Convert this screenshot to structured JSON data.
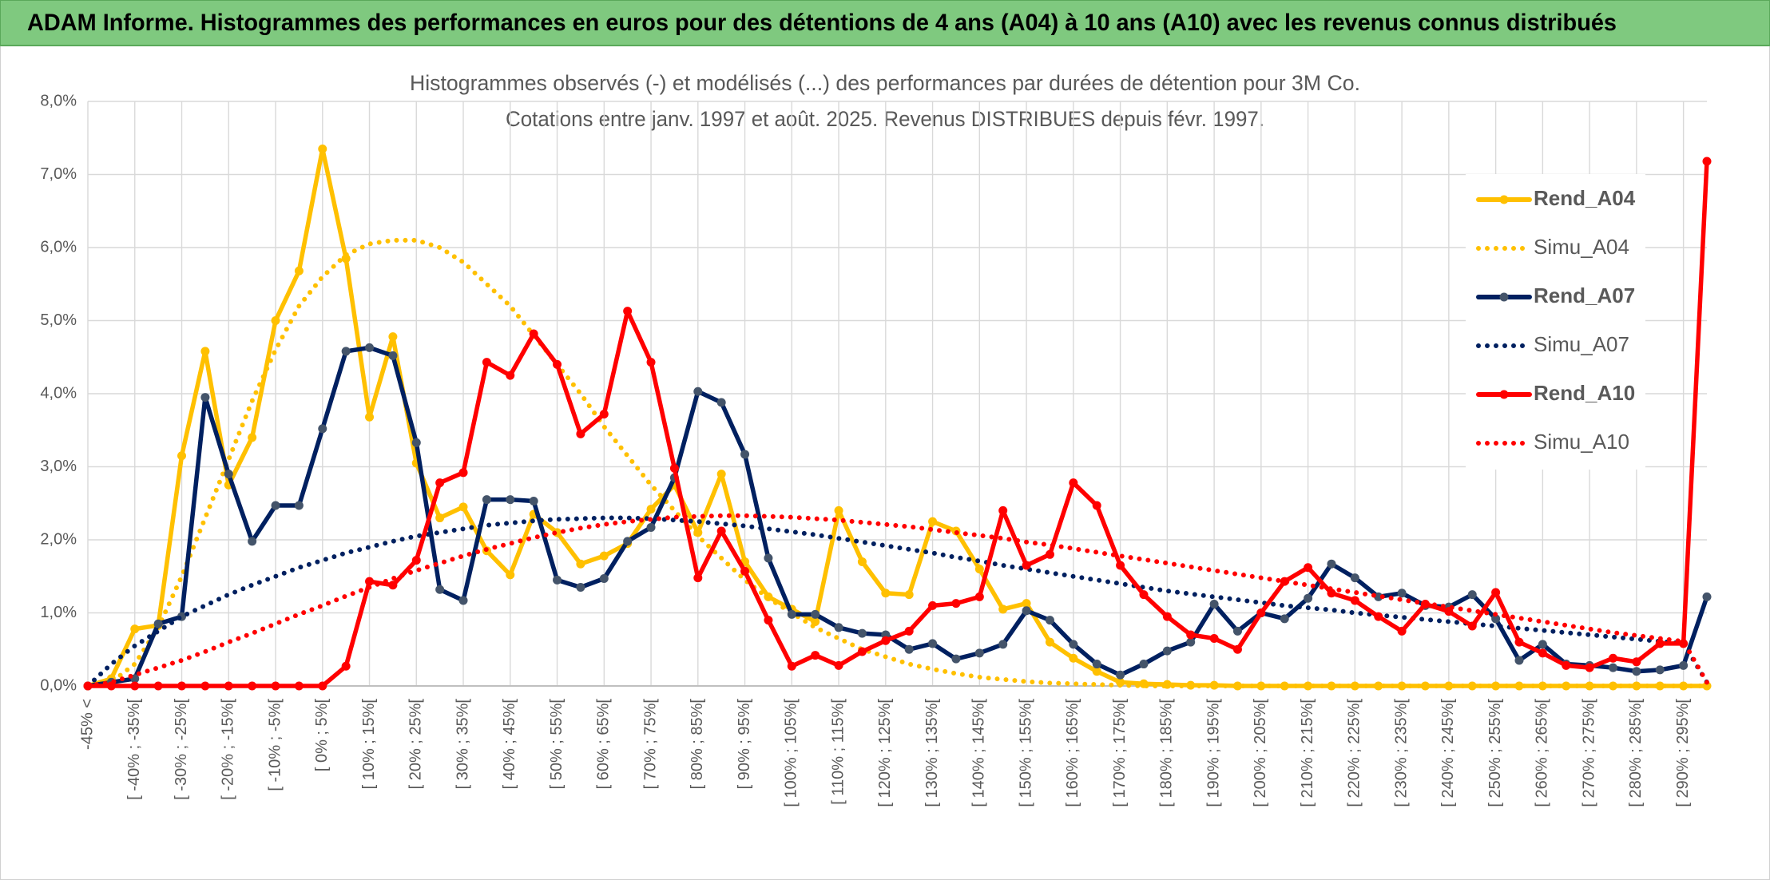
{
  "header": {
    "title": "ADAM Informe. Histogrammes des performances en euros pour des détentions de 4 ans (A04) à 10 ans (A10) avec les revenus connus distribués"
  },
  "chart_data": {
    "type": "line",
    "title": "Histogrammes observés (-) et modélisés (...) des performances par durées de détention pour 3M Co.",
    "subtitle": "Cotations entre janv. 1997 et août. 2025. Revenus DISTRIBUES depuis févr. 1997.",
    "categories": [
      "-45% <",
      null,
      "[ -40% ; -35%[",
      null,
      "[ -30% ; -25%[",
      null,
      "[ -20% ; -15%[",
      null,
      "[ -10% ; -5%[",
      null,
      "[ 0% ; 5%[",
      null,
      "[ 10% ; 15%[",
      null,
      "[ 20% ; 25%[",
      null,
      "[ 30% ; 35%[",
      null,
      "[ 40% ; 45%[",
      null,
      "[ 50% ; 55%[",
      null,
      "[ 60% ; 65%[",
      null,
      "[ 70% ; 75%[",
      null,
      "[ 80% ; 85%[",
      null,
      "[ 90% ; 95%[",
      null,
      "[ 100% ; 105%[",
      null,
      "[ 110% ; 115%[",
      null,
      "[ 120% ; 125%[",
      null,
      "[ 130% ; 135%[",
      null,
      "[ 140% ; 145%[",
      null,
      "[ 150% ; 155%[",
      null,
      "[ 160% ; 165%[",
      null,
      "[ 170% ; 175%[",
      null,
      "[ 180% ; 185%[",
      null,
      "[ 190% ; 195%[",
      null,
      "[ 200% ; 205%[",
      null,
      "[ 210% ; 215%[",
      null,
      "[ 220% ; 225%[",
      null,
      "[ 230% ; 235%[",
      null,
      "[ 240% ; 245%[",
      null,
      "[ 250% ; 255%[",
      null,
      "[ 260% ; 265%[",
      null,
      "[ 270% ; 275%[",
      null,
      "[ 280% ; 285%[",
      null,
      "[ 290% ; 295%[",
      null
    ],
    "series": [
      {
        "name": "Rend_A04",
        "color": "#ffc000",
        "style": "solid",
        "markers": true,
        "values": [
          0,
          0.1,
          0.78,
          0.83,
          3.15,
          4.58,
          2.75,
          3.4,
          5.0,
          5.68,
          7.35,
          5.85,
          3.68,
          4.78,
          3.05,
          2.3,
          2.45,
          1.85,
          1.52,
          2.35,
          2.1,
          1.67,
          1.78,
          1.95,
          2.42,
          2.75,
          2.1,
          2.9,
          1.7,
          1.22,
          1.05,
          0.88,
          2.4,
          1.7,
          1.27,
          1.25,
          2.25,
          2.12,
          1.6,
          1.05,
          1.13,
          0.6,
          0.38,
          0.2,
          0.05,
          0.03,
          0.02,
          0.01,
          0.01,
          0,
          0,
          0,
          0,
          0,
          0,
          0,
          0,
          0,
          0,
          0,
          0,
          0,
          0,
          0,
          0,
          0,
          0,
          0,
          0,
          0
        ]
      },
      {
        "name": "Simu_A04",
        "color": "#ffc000",
        "style": "dotted",
        "markers": false,
        "values": [
          0,
          0.05,
          0.3,
          0.8,
          1.5,
          2.3,
          3.1,
          3.9,
          4.6,
          5.2,
          5.6,
          5.9,
          6.05,
          6.1,
          6.1,
          6.0,
          5.8,
          5.5,
          5.2,
          4.8,
          4.4,
          4.0,
          3.55,
          3.15,
          2.75,
          2.4,
          2.05,
          1.75,
          1.45,
          1.2,
          1.0,
          0.8,
          0.65,
          0.5,
          0.4,
          0.3,
          0.23,
          0.17,
          0.12,
          0.09,
          0.06,
          0.04,
          0.03,
          0.02,
          0.01,
          0,
          0,
          0,
          0,
          0,
          0,
          0,
          0,
          0,
          0,
          0,
          0,
          0,
          0,
          0,
          0,
          0,
          0,
          0,
          0,
          0,
          0,
          0,
          0,
          0
        ]
      },
      {
        "name": "Rend_A07",
        "color": "#002060",
        "style": "solid",
        "markers": true,
        "values": [
          0,
          0.05,
          0.1,
          0.85,
          0.95,
          3.95,
          2.9,
          1.98,
          2.47,
          2.47,
          3.52,
          4.58,
          4.63,
          4.52,
          3.33,
          1.32,
          1.17,
          2.55,
          2.55,
          2.53,
          1.45,
          1.35,
          1.47,
          1.98,
          2.17,
          2.85,
          4.03,
          3.88,
          3.17,
          1.75,
          0.98,
          0.98,
          0.8,
          0.72,
          0.7,
          0.5,
          0.58,
          0.37,
          0.45,
          0.57,
          1.03,
          0.9,
          0.57,
          0.3,
          0.15,
          0.3,
          0.48,
          0.6,
          1.12,
          0.75,
          1.0,
          0.92,
          1.2,
          1.67,
          1.48,
          1.22,
          1.27,
          1.1,
          1.08,
          1.25,
          0.92,
          0.35,
          0.57,
          0.3,
          0.28,
          0.25,
          0.2,
          0.22,
          0.28,
          1.22
        ]
      },
      {
        "name": "Simu_A07",
        "color": "#002060",
        "style": "dotted",
        "markers": false,
        "values": [
          0,
          0.3,
          0.55,
          0.75,
          0.95,
          1.1,
          1.25,
          1.38,
          1.5,
          1.62,
          1.72,
          1.82,
          1.9,
          1.98,
          2.05,
          2.1,
          2.15,
          2.2,
          2.23,
          2.26,
          2.28,
          2.29,
          2.3,
          2.3,
          2.29,
          2.27,
          2.25,
          2.22,
          2.19,
          2.15,
          2.11,
          2.07,
          2.02,
          1.97,
          1.92,
          1.87,
          1.82,
          1.76,
          1.71,
          1.65,
          1.6,
          1.55,
          1.5,
          1.45,
          1.4,
          1.35,
          1.3,
          1.26,
          1.22,
          1.18,
          1.14,
          1.1,
          1.07,
          1.04,
          1.0,
          0.97,
          0.94,
          0.91,
          0.88,
          0.85,
          0.82,
          0.79,
          0.76,
          0.73,
          0.7,
          0.67,
          0.64,
          0.61,
          0.58,
          0.05
        ]
      },
      {
        "name": "Rend_A10",
        "color": "#ff0000",
        "style": "solid",
        "markers": true,
        "values": [
          0,
          0,
          0,
          0,
          0,
          0,
          0,
          0,
          0,
          0,
          0,
          0.27,
          1.43,
          1.38,
          1.72,
          2.78,
          2.92,
          4.43,
          4.25,
          4.82,
          4.4,
          3.45,
          3.72,
          5.13,
          4.43,
          2.98,
          1.48,
          2.12,
          1.57,
          0.9,
          0.27,
          0.42,
          0.28,
          0.47,
          0.62,
          0.75,
          1.1,
          1.13,
          1.22,
          2.4,
          1.65,
          1.8,
          2.78,
          2.47,
          1.65,
          1.25,
          0.95,
          0.7,
          0.65,
          0.5,
          1.0,
          1.43,
          1.62,
          1.27,
          1.17,
          0.95,
          0.75,
          1.12,
          1.02,
          0.82,
          1.28,
          0.6,
          0.45,
          0.28,
          0.25,
          0.38,
          0.33,
          0.58,
          0.58,
          7.18
        ]
      },
      {
        "name": "Simu_A10",
        "color": "#ff0000",
        "style": "dotted",
        "markers": false,
        "values": [
          0,
          0.05,
          0.15,
          0.25,
          0.35,
          0.47,
          0.6,
          0.72,
          0.85,
          0.98,
          1.1,
          1.23,
          1.35,
          1.47,
          1.58,
          1.68,
          1.78,
          1.87,
          1.95,
          2.03,
          2.1,
          2.16,
          2.21,
          2.25,
          2.28,
          2.31,
          2.32,
          2.33,
          2.33,
          2.32,
          2.31,
          2.29,
          2.27,
          2.24,
          2.21,
          2.18,
          2.14,
          2.1,
          2.06,
          2.02,
          1.97,
          1.93,
          1.88,
          1.83,
          1.78,
          1.73,
          1.68,
          1.63,
          1.58,
          1.53,
          1.48,
          1.43,
          1.38,
          1.33,
          1.28,
          1.23,
          1.18,
          1.13,
          1.08,
          1.03,
          0.98,
          0.93,
          0.88,
          0.83,
          0.78,
          0.73,
          0.69,
          0.65,
          0.61,
          0.05
        ]
      }
    ],
    "ylim": [
      0,
      8
    ],
    "yticks": [
      {
        "value": 0,
        "label": "0,0%"
      },
      {
        "value": 1,
        "label": "1,0%"
      },
      {
        "value": 2,
        "label": "2,0%"
      },
      {
        "value": 3,
        "label": "3,0%"
      },
      {
        "value": 4,
        "label": "4,0%"
      },
      {
        "value": 5,
        "label": "5,0%"
      },
      {
        "value": 6,
        "label": "6,0%"
      },
      {
        "value": 7,
        "label": "7,0%"
      },
      {
        "value": 8,
        "label": "8,0%"
      }
    ],
    "grid": true,
    "legend": "right"
  }
}
